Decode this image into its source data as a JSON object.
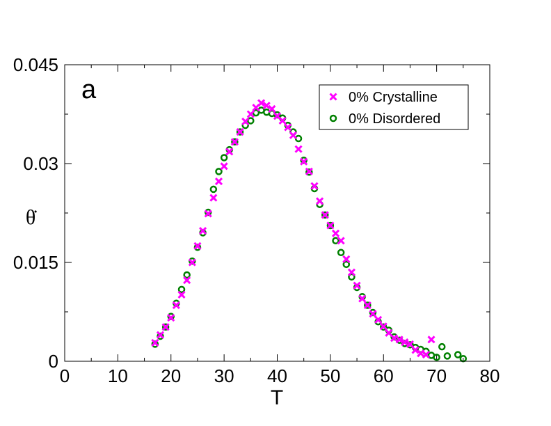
{
  "chart_data": {
    "type": "scatter",
    "panel_label": "a",
    "xlabel": "T",
    "ylabel": "θ̇",
    "xlim": [
      0,
      80
    ],
    "ylim": [
      0,
      0.045
    ],
    "xticks": [
      "0",
      "10",
      "20",
      "30",
      "40",
      "50",
      "60",
      "70",
      "80"
    ],
    "yticks": [
      "0",
      "0.015",
      "0.03",
      "0.045"
    ],
    "grid": false,
    "legend_position": "top-right",
    "series": [
      {
        "name": "0% Crystalline",
        "marker": "x",
        "color": "#ff00ff",
        "x": [
          17,
          18,
          19,
          20,
          21,
          22,
          23,
          24,
          25,
          26,
          27,
          28,
          29,
          30,
          31,
          32,
          33,
          34,
          35,
          36,
          37,
          38,
          39,
          40,
          41,
          42,
          43,
          44,
          45,
          46,
          47,
          48,
          49,
          50,
          51,
          52,
          53,
          54,
          55,
          56,
          57,
          58,
          59,
          60,
          61,
          62,
          63,
          64,
          65,
          66,
          67,
          68,
          69
        ],
        "y": [
          0.0028,
          0.004,
          0.0052,
          0.0066,
          0.0085,
          0.0101,
          0.0123,
          0.015,
          0.0175,
          0.0198,
          0.0224,
          0.0248,
          0.0273,
          0.0296,
          0.0318,
          0.0333,
          0.0348,
          0.0364,
          0.0375,
          0.0385,
          0.0392,
          0.0388,
          0.0383,
          0.0372,
          0.0365,
          0.0355,
          0.0343,
          0.0322,
          0.0303,
          0.0288,
          0.0266,
          0.0243,
          0.0222,
          0.0206,
          0.0194,
          0.0183,
          0.0155,
          0.0135,
          0.0115,
          0.0095,
          0.0085,
          0.0072,
          0.0063,
          0.0053,
          0.0043,
          0.0035,
          0.0033,
          0.0029,
          0.0026,
          0.0017,
          0.0012,
          0.001,
          0.0033
        ]
      },
      {
        "name": "0% Disordered",
        "marker": "o",
        "color": "#008000",
        "x": [
          17,
          18,
          19,
          20,
          21,
          22,
          23,
          24,
          25,
          26,
          27,
          28,
          29,
          30,
          31,
          32,
          33,
          34,
          35,
          36,
          37,
          38,
          39,
          40,
          41,
          42,
          43,
          44,
          45,
          46,
          47,
          48,
          49,
          50,
          51,
          52,
          53,
          54,
          55,
          56,
          57,
          58,
          59,
          60,
          61,
          62,
          63,
          64,
          65,
          66,
          67,
          68,
          69,
          70,
          71,
          72,
          74,
          75
        ],
        "y": [
          0.0026,
          0.0038,
          0.0052,
          0.0068,
          0.0088,
          0.0109,
          0.0131,
          0.0152,
          0.0173,
          0.0195,
          0.0226,
          0.0261,
          0.0288,
          0.0309,
          0.0321,
          0.0333,
          0.0348,
          0.0358,
          0.0365,
          0.0377,
          0.0381,
          0.0378,
          0.0376,
          0.0374,
          0.0369,
          0.0358,
          0.0348,
          0.0338,
          0.0305,
          0.0287,
          0.0262,
          0.0238,
          0.0222,
          0.0206,
          0.0183,
          0.0165,
          0.0147,
          0.0128,
          0.0112,
          0.0098,
          0.0085,
          0.0074,
          0.006,
          0.0052,
          0.0047,
          0.0037,
          0.0032,
          0.0027,
          0.0025,
          0.0021,
          0.0018,
          0.0015,
          0.0009,
          0.0006,
          0.0022,
          0.0008,
          0.001,
          0.0004
        ]
      }
    ]
  }
}
